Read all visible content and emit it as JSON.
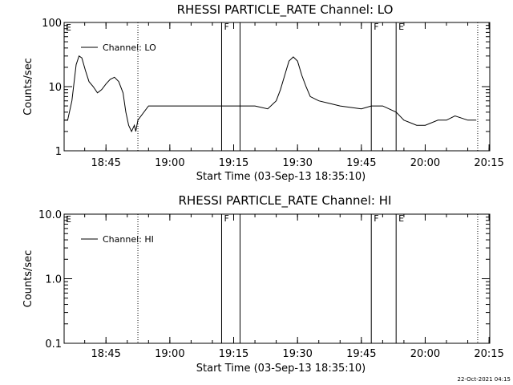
{
  "footer_timestamp": "22-Oct-2021 04:15",
  "chart_data": [
    {
      "type": "line",
      "title": "RHESSI PARTICLE_RATE Channel: LO",
      "xlabel": "Start Time (03-Sep-13 18:35:10)",
      "ylabel": "Counts/sec",
      "yscale": "log",
      "ylim": [
        1,
        100
      ],
      "xlim": [
        "18:35:10",
        "20:15:10"
      ],
      "x_ticks": [
        "18:45",
        "19:00",
        "19:15",
        "19:30",
        "19:45",
        "20:00",
        "20:15"
      ],
      "y_ticks": [
        "1",
        "10",
        "100"
      ],
      "legend": "top-left",
      "markers": [
        {
          "time": "18:52:30",
          "style": "dotted",
          "label": ""
        },
        {
          "time": "19:12:10",
          "style": "solid",
          "label": "F"
        },
        {
          "time": "19:16:30",
          "style": "solid",
          "label": ""
        },
        {
          "time": "19:47:20",
          "style": "solid",
          "label": "F"
        },
        {
          "time": "19:53:10",
          "style": "solid",
          "label": "E"
        },
        {
          "time": "20:12:20",
          "style": "dotted",
          "label": ""
        }
      ],
      "corner_label": "E",
      "series": [
        {
          "name": "Channel: LO",
          "x": [
            "18:35:10",
            "18:36:00",
            "18:37:00",
            "18:38:00",
            "18:38:40",
            "18:39:20",
            "18:40:10",
            "18:41:00",
            "18:42:00",
            "18:43:00",
            "18:44:00",
            "18:45:00",
            "18:46:00",
            "18:47:00",
            "18:48:00",
            "18:49:00",
            "18:49:40",
            "18:50:20",
            "18:51:00",
            "18:51:40",
            "18:52:00",
            "18:52:30",
            "18:55:00",
            "19:00:00",
            "19:05:00",
            "19:10:00",
            "19:12:10",
            "19:16:30",
            "19:20:00",
            "19:23:00",
            "19:25:00",
            "19:26:00",
            "19:27:00",
            "19:28:00",
            "19:29:00",
            "19:30:00",
            "19:31:00",
            "19:32:00",
            "19:33:00",
            "19:35:00",
            "19:40:00",
            "19:45:00",
            "19:47:20",
            "19:50:00",
            "19:53:10",
            "19:55:00",
            "19:58:00",
            "20:00:00",
            "20:03:00",
            "20:05:00",
            "20:07:00",
            "20:10:00",
            "20:12:00"
          ],
          "y": [
            3,
            3,
            6,
            22,
            30,
            28,
            18,
            12,
            10,
            8,
            9,
            11,
            13,
            14,
            12,
            8,
            4,
            2.5,
            2,
            2.5,
            2,
            3,
            5,
            5,
            5,
            5,
            5,
            5,
            5,
            4.5,
            6,
            9,
            15,
            25,
            29,
            25,
            15,
            10,
            7,
            6,
            5,
            4.5,
            5,
            5,
            4,
            3,
            2.5,
            2.5,
            3,
            3,
            3.5,
            3,
            3
          ]
        }
      ]
    },
    {
      "type": "line",
      "title": "RHESSI PARTICLE_RATE Channel: HI",
      "xlabel": "Start Time (03-Sep-13 18:35:10)",
      "ylabel": "Counts/sec",
      "yscale": "log",
      "ylim": [
        0.1,
        10
      ],
      "xlim": [
        "18:35:10",
        "20:15:10"
      ],
      "x_ticks": [
        "18:45",
        "19:00",
        "19:15",
        "19:30",
        "19:45",
        "20:00",
        "20:15"
      ],
      "y_ticks": [
        "0.1",
        "1.0",
        "10.0"
      ],
      "legend": "top-left",
      "markers": [
        {
          "time": "18:52:30",
          "style": "dotted",
          "label": ""
        },
        {
          "time": "19:12:10",
          "style": "solid",
          "label": "F"
        },
        {
          "time": "19:16:30",
          "style": "solid",
          "label": ""
        },
        {
          "time": "19:47:20",
          "style": "solid",
          "label": "F"
        },
        {
          "time": "19:53:10",
          "style": "solid",
          "label": "E"
        },
        {
          "time": "20:12:20",
          "style": "dotted",
          "label": ""
        }
      ],
      "corner_label": "E",
      "series": [
        {
          "name": "Channel: HI",
          "x": [],
          "y": []
        }
      ]
    }
  ]
}
